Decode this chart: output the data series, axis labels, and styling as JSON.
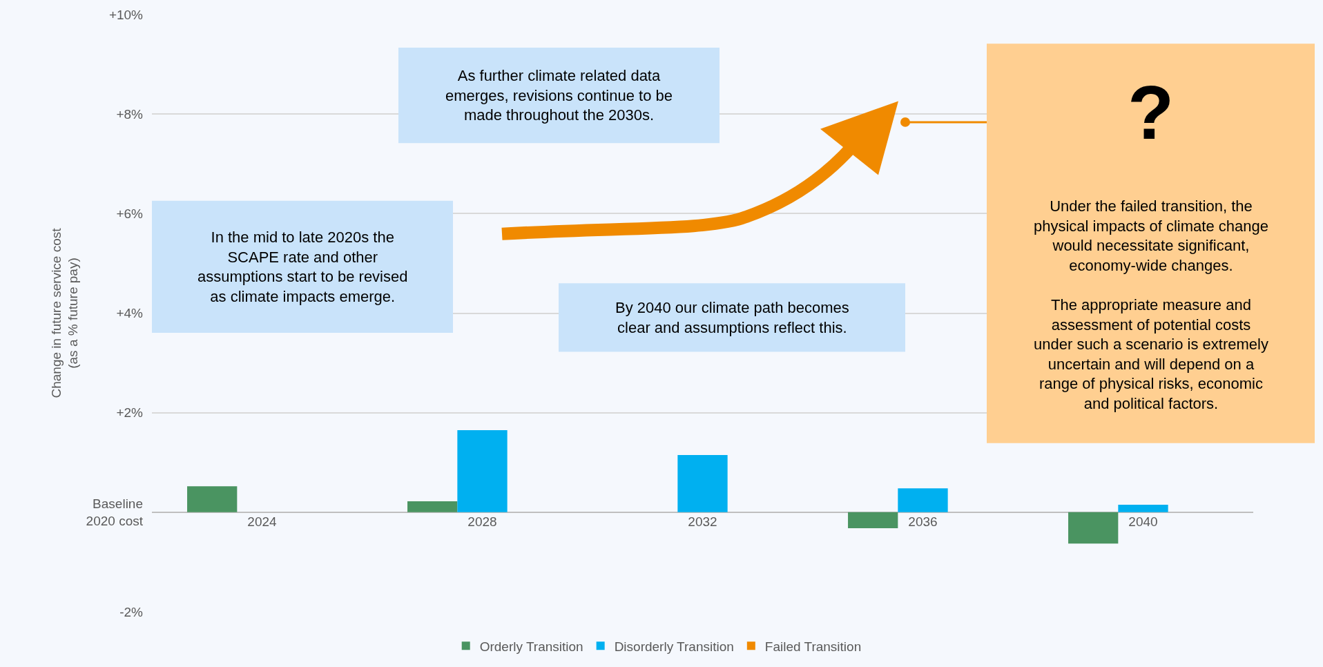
{
  "chart_data": {
    "type": "bar",
    "ylabel": "Change in future service cost\n(as a % future pay)",
    "categories": [
      "2024",
      "2028",
      "2032",
      "2036",
      "2040"
    ],
    "series": [
      {
        "name": "Orderly Transition",
        "color": "#4a9461",
        "values": [
          0.52,
          0.22,
          null,
          -0.32,
          -0.63
        ]
      },
      {
        "name": "Disorderly Transition",
        "color": "#00b0f0",
        "values": [
          null,
          1.65,
          1.15,
          0.48,
          0.15
        ]
      },
      {
        "name": "Failed Transition",
        "color": "#f08a00",
        "values": [
          null,
          null,
          null,
          null,
          null
        ]
      }
    ],
    "ylim": [
      -2,
      10
    ],
    "yticks": [
      {
        "value": -2,
        "label": "-2%"
      },
      {
        "value": 0,
        "label": "Baseline\n2020 cost"
      },
      {
        "value": 2,
        "label": "+2%"
      },
      {
        "value": 4,
        "label": "+4%"
      },
      {
        "value": 6,
        "label": "+6%"
      },
      {
        "value": 8,
        "label": "+8%"
      },
      {
        "value": 10,
        "label": "+10%"
      }
    ],
    "grid": "y",
    "legend": "bottom",
    "annotations": [
      "In the mid to late 2020s the\nSCAPE rate and other\nassumptions start to be revised\nas climate impacts emerge.",
      "As further climate related data\nemerges, revisions continue to be\nmade throughout the 2030s.",
      "By 2040 our climate path becomes\nclear and assumptions reflect this.",
      "?",
      "Under the failed transition, the\nphysical impacts of climate change\nwould necessitate significant,\neconomy-wide changes.\n\nThe appropriate measure and\nassessment of potential costs\nunder such a scenario is extremely\nuncertain and will depend on a\nrange of physical risks, economic\nand political factors."
    ]
  }
}
